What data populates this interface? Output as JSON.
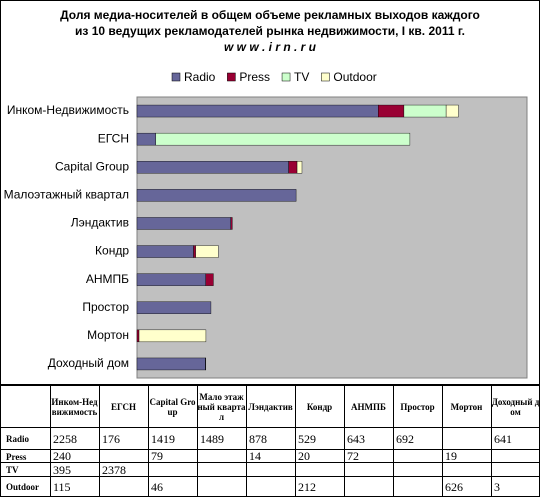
{
  "chart_data": {
    "type": "stacked-barh",
    "title_lines": [
      "Доля медиа-носителей в общем объеме рекламных выходов  каждого",
      "из 10 ведущих рекламодателей рынка недвижимости,   I кв. 2011 г.",
      "w w w . i r n . r u"
    ],
    "categories": [
      "Инком-Недвижимость",
      "ЕГСН",
      "Capital Group",
      "Малоэтажный квартал",
      "Лэндактив",
      "Кондр",
      "АНМПБ",
      "Простор",
      "Мортон",
      "Доходный дом"
    ],
    "series": [
      {
        "name": "Radio",
        "color": "#666699",
        "values": [
          2258,
          176,
          1419,
          1489,
          878,
          529,
          643,
          692,
          null,
          641
        ]
      },
      {
        "name": "Press",
        "color": "#990033",
        "values": [
          240,
          null,
          79,
          null,
          14,
          20,
          72,
          null,
          19,
          null
        ]
      },
      {
        "name": "TV",
        "color": "#ccffcc",
        "values": [
          395,
          2378,
          null,
          null,
          null,
          null,
          null,
          null,
          null,
          null
        ]
      },
      {
        "name": "Outdoor",
        "color": "#ffffcc",
        "values": [
          115,
          null,
          46,
          null,
          null,
          212,
          null,
          null,
          626,
          3
        ]
      }
    ],
    "xlim": [
      0,
      3650
    ],
    "plot_background": "#c0c0c0",
    "legend": "top",
    "table_headers": [
      "Инком-Недвижимость",
      "ЕГСН",
      "Capital Group",
      "Мало этажный квартал",
      "Лэндактив",
      "Кондр",
      "АНМПБ",
      "Простор",
      "Мортон",
      "Доходный дом"
    ]
  }
}
